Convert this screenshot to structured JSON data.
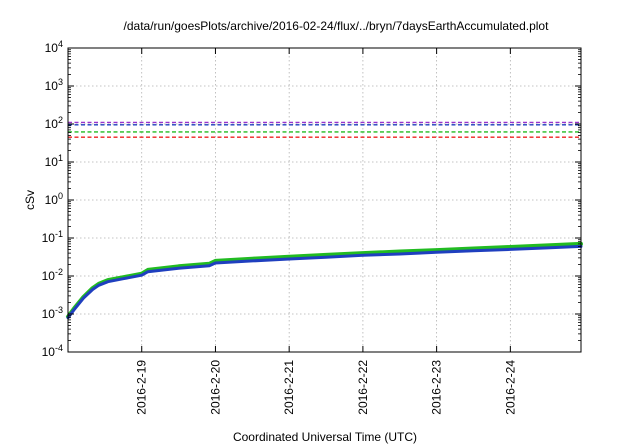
{
  "chart_data": {
    "type": "line",
    "title": "/data/run/goesPlots/archive/2016-02-24/flux/../bryn/7daysEarthAccumulated.plot",
    "xlabel": "Coordinated Universal Time (UTC)",
    "ylabel": "cSv",
    "x_start": "2016-02-18 00:00",
    "x_end": "2016-02-24 23:00",
    "x_ticks": [
      {
        "label": "2016-2-19",
        "value": "2016-02-19"
      },
      {
        "label": "2016-2-20",
        "value": "2016-02-20"
      },
      {
        "label": "2016-2-21",
        "value": "2016-02-21"
      },
      {
        "label": "2016-2-22",
        "value": "2016-02-22"
      },
      {
        "label": "2016-2-23",
        "value": "2016-02-23"
      },
      {
        "label": "2016-2-24",
        "value": "2016-02-24"
      }
    ],
    "y_scale": "log",
    "ylim": [
      0.0001,
      10000
    ],
    "y_ticks": [
      {
        "base": "10",
        "exp": "-4",
        "value": 0.0001
      },
      {
        "base": "10",
        "exp": "-3",
        "value": 0.001
      },
      {
        "base": "10",
        "exp": "-2",
        "value": 0.01
      },
      {
        "base": "10",
        "exp": "-1",
        "value": 0.1
      },
      {
        "base": "10",
        "exp": "0",
        "value": 1
      },
      {
        "base": "10",
        "exp": "1",
        "value": 10
      },
      {
        "base": "10",
        "exp": "2",
        "value": 100
      },
      {
        "base": "10",
        "exp": "3",
        "value": 1000
      },
      {
        "base": "10",
        "exp": "4",
        "value": 10000
      }
    ],
    "grid": true,
    "thresholds": [
      {
        "value": 110,
        "color": "#9933cc",
        "style": "dashed"
      },
      {
        "value": 95,
        "color": "#1f3fbf",
        "style": "dashed"
      },
      {
        "value": 62,
        "color": "#22bb22",
        "style": "dashed"
      },
      {
        "value": 45,
        "color": "#ee2222",
        "style": "dashed"
      }
    ],
    "series": [
      {
        "color": "#22bb22",
        "x": [
          "2016-02-18 00:00",
          "2016-02-18 02:00",
          "2016-02-18 05:00",
          "2016-02-18 08:00",
          "2016-02-18 10:00",
          "2016-02-18 13:00",
          "2016-02-18 18:00",
          "2016-02-19 00:00",
          "2016-02-19 02:00",
          "2016-02-19 12:00",
          "2016-02-19 22:00",
          "2016-02-20 00:00",
          "2016-02-20 12:00",
          "2016-02-21 00:00",
          "2016-02-21 12:00",
          "2016-02-22 00:00",
          "2016-02-22 12:00",
          "2016-02-23 00:00",
          "2016-02-23 12:00",
          "2016-02-24 00:00",
          "2016-02-24 12:00",
          "2016-02-24 23:00"
        ],
        "values": [
          0.00085,
          0.0014,
          0.0028,
          0.0048,
          0.0062,
          0.0078,
          0.0093,
          0.0115,
          0.0145,
          0.018,
          0.021,
          0.025,
          0.0285,
          0.032,
          0.036,
          0.04,
          0.044,
          0.048,
          0.053,
          0.058,
          0.064,
          0.07
        ]
      },
      {
        "color": "#1f3fbf",
        "x": [
          "2016-02-18 00:00",
          "2016-02-18 02:00",
          "2016-02-18 05:00",
          "2016-02-18 08:00",
          "2016-02-18 10:00",
          "2016-02-18 13:00",
          "2016-02-18 18:00",
          "2016-02-19 00:00",
          "2016-02-19 02:00",
          "2016-02-19 12:00",
          "2016-02-19 22:00",
          "2016-02-20 00:00",
          "2016-02-20 12:00",
          "2016-02-21 00:00",
          "2016-02-21 12:00",
          "2016-02-22 00:00",
          "2016-02-22 12:00",
          "2016-02-23 00:00",
          "2016-02-23 12:00",
          "2016-02-24 00:00",
          "2016-02-24 12:00",
          "2016-02-24 23:00"
        ],
        "values": [
          0.0008,
          0.0013,
          0.0026,
          0.0044,
          0.0057,
          0.0071,
          0.0085,
          0.0105,
          0.013,
          0.016,
          0.0185,
          0.022,
          0.025,
          0.028,
          0.031,
          0.035,
          0.038,
          0.042,
          0.046,
          0.05,
          0.055,
          0.06
        ]
      }
    ]
  }
}
